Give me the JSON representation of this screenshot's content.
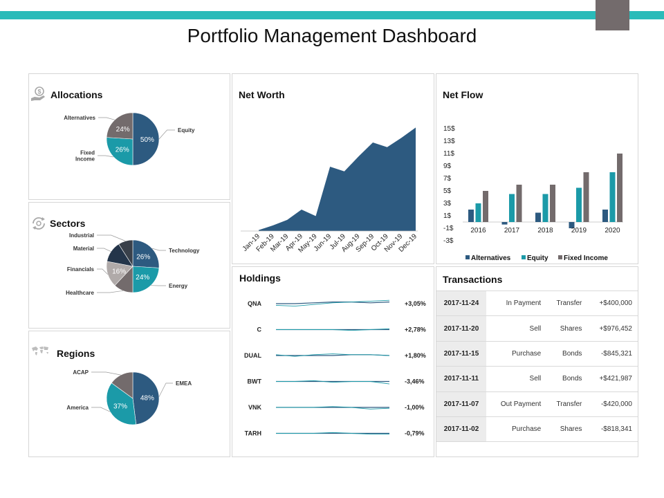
{
  "title": "Portfolio Management Dashboard",
  "colors": {
    "teal_bar": "#2ABBB9",
    "gray": "#736B6C",
    "navy": "#2D5A80",
    "teal": "#1B9AA8",
    "light_gray": "#B0AAA9",
    "dark_navy": "#24354A"
  },
  "panels": {
    "allocations": "Allocations",
    "sectors": "Sectors",
    "regions": "Regions",
    "net_worth": "Net Worth",
    "net_flow": "Net Flow",
    "holdings": "Holdings",
    "transactions": "Transactions"
  },
  "icons": {
    "allocations": "money-hand-icon",
    "sectors": "cycle-arrows-icon",
    "regions": "world-map-icon"
  },
  "chart_data": [
    {
      "id": "allocations",
      "type": "pie",
      "labels": [
        "Equity",
        "Fixed Income",
        "Alternatives"
      ],
      "values": [
        50,
        26,
        24
      ],
      "value_labels": [
        "50%",
        "26%",
        "24%"
      ]
    },
    {
      "id": "sectors",
      "type": "pie",
      "labels": [
        "Technology",
        "Energy",
        "Healthcare",
        "Financials",
        "Material",
        "Industrial"
      ],
      "values": [
        26,
        24,
        12,
        16,
        13,
        9
      ],
      "value_labels": [
        "26%",
        "24%",
        "",
        "16%",
        "",
        ""
      ]
    },
    {
      "id": "regions",
      "type": "pie",
      "labels": [
        "EMEA",
        "America",
        "ACAP"
      ],
      "values": [
        48,
        37,
        15
      ],
      "value_labels": [
        "48%",
        "37%",
        ""
      ]
    },
    {
      "id": "net_worth",
      "type": "area",
      "categories": [
        "Jan-19",
        "Feb-19",
        "Mar-19",
        "Apr-19",
        "May-19",
        "Jun-19",
        "Jul-19",
        "Aug-19",
        "Sep-19",
        "Oct-19",
        "Nov-19",
        "Dec-19"
      ],
      "values": [
        1,
        6,
        12,
        23,
        16,
        69,
        64,
        80,
        95,
        90,
        100,
        111
      ],
      "ylim": [
        0,
        115
      ]
    },
    {
      "id": "net_flow",
      "type": "bar",
      "categories": [
        "2016",
        "2017",
        "2018",
        "2019",
        "2020"
      ],
      "series": [
        {
          "name": "Alternatives",
          "values": [
            2,
            -0.4,
            1.5,
            -1,
            2
          ]
        },
        {
          "name": "Equity",
          "values": [
            3,
            4.5,
            4.5,
            5.5,
            8
          ]
        },
        {
          "name": "Fixed Income",
          "values": [
            5,
            6,
            6,
            8,
            11
          ]
        }
      ],
      "yticks": [
        "15$",
        "13$",
        "11$",
        "9$",
        "7$",
        "5$",
        "3$",
        "1$",
        "-1$",
        "-3$"
      ],
      "ylim": [
        -3,
        15
      ],
      "legend": "bottom"
    }
  ],
  "holdings": [
    {
      "ticker": "QNA",
      "change": "+3,05%",
      "a": [
        3,
        2,
        4,
        6,
        7,
        8,
        9
      ],
      "b": [
        5,
        5,
        6,
        7,
        7,
        6,
        7
      ]
    },
    {
      "ticker": "C",
      "change": "+2,78%",
      "a": [
        5,
        5,
        5,
        5,
        4,
        5,
        6
      ],
      "b": [
        5,
        5,
        5,
        5,
        5,
        5,
        5
      ]
    },
    {
      "ticker": "DUAL",
      "change": "+1,80%",
      "a": [
        6,
        4,
        6,
        7,
        6,
        6,
        5
      ],
      "b": [
        5,
        5,
        5,
        5,
        6,
        6,
        5
      ]
    },
    {
      "ticker": "BWT",
      "change": "-3,46%",
      "a": [
        5,
        5,
        6,
        4,
        5,
        5,
        2
      ],
      "b": [
        5,
        5,
        5,
        5,
        5,
        5,
        5
      ]
    },
    {
      "ticker": "VNK",
      "change": "-1,00%",
      "a": [
        5,
        5,
        5,
        6,
        5,
        3,
        4
      ],
      "b": [
        5,
        5,
        5,
        5,
        5,
        5,
        5
      ]
    },
    {
      "ticker": "TARH",
      "change": "-0,79%",
      "a": [
        5,
        5,
        5,
        6,
        5,
        4,
        4
      ],
      "b": [
        5,
        5,
        5,
        5,
        5,
        5,
        5
      ]
    }
  ],
  "transactions": [
    {
      "date": "2017-11-24",
      "action": "In Payment",
      "type": "Transfer",
      "amount": "+$400,000"
    },
    {
      "date": "2017-11-20",
      "action": "Sell",
      "type": "Shares",
      "amount": "+$976,452"
    },
    {
      "date": "2017-11-15",
      "action": "Purchase",
      "type": "Bonds",
      "amount": "-$845,321"
    },
    {
      "date": "2017-11-11",
      "action": "Sell",
      "type": "Bonds",
      "amount": "+$421,987"
    },
    {
      "date": "2017-11-07",
      "action": "Out Payment",
      "type": "Transfer",
      "amount": "-$420,000"
    },
    {
      "date": "2017-11-02",
      "action": "Purchase",
      "type": "Shares",
      "amount": "-$818,341"
    }
  ]
}
